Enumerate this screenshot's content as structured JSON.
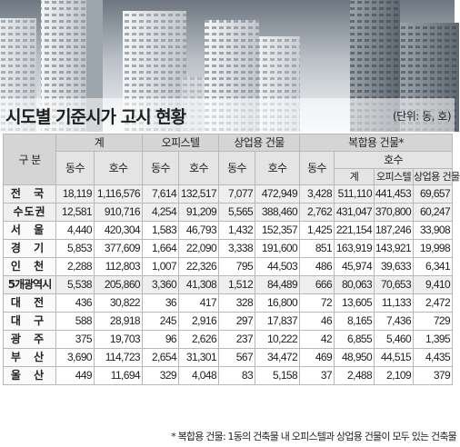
{
  "title": "시도별 기준시가 고시 현황",
  "unit": "(단위: 동, 호)",
  "headers": {
    "category": "구 분",
    "total": "계",
    "officetel": "오피스텔",
    "commercial": "상업용 건물",
    "mixed": "복합용 건물*",
    "dong": "동수",
    "ho": "호수",
    "mixed_total": "계",
    "mixed_officetel": "오피스텔",
    "mixed_commercial": "상업용 건물"
  },
  "rows": [
    {
      "name": "전 국",
      "v": [
        "18,119",
        "1,116,576",
        "7,614",
        "132,517",
        "7,077",
        "472,949",
        "3,428",
        "511,110",
        "441,453",
        "69,657"
      ]
    },
    {
      "name": "수도권",
      "v": [
        "12,581",
        "910,716",
        "4,254",
        "91,209",
        "5,565",
        "388,460",
        "2,762",
        "431,047",
        "370,800",
        "60,247"
      ]
    },
    {
      "name": "서 울",
      "v": [
        "4,440",
        "420,304",
        "1,583",
        "46,793",
        "1,432",
        "152,357",
        "1,425",
        "221,154",
        "187,246",
        "33,908"
      ]
    },
    {
      "name": "경 기",
      "v": [
        "5,853",
        "377,609",
        "1,664",
        "22,090",
        "3,338",
        "191,600",
        "851",
        "163,919",
        "143,921",
        "19,998"
      ]
    },
    {
      "name": "인 천",
      "v": [
        "2,288",
        "112,803",
        "1,007",
        "22,326",
        "795",
        "44,503",
        "486",
        "45,974",
        "39,633",
        "6,341"
      ]
    },
    {
      "name": "5개광역시",
      "v": [
        "5,538",
        "205,860",
        "3,360",
        "41,308",
        "1,512",
        "84,489",
        "666",
        "80,063",
        "70,653",
        "9,410"
      ]
    },
    {
      "name": "대 전",
      "v": [
        "436",
        "30,822",
        "36",
        "417",
        "328",
        "16,800",
        "72",
        "13,605",
        "11,133",
        "2,472"
      ]
    },
    {
      "name": "대 구",
      "v": [
        "588",
        "28,918",
        "245",
        "2,916",
        "297",
        "17,837",
        "46",
        "8,165",
        "7,436",
        "729"
      ]
    },
    {
      "name": "광 주",
      "v": [
        "375",
        "19,703",
        "96",
        "2,626",
        "237",
        "10,222",
        "42",
        "6,855",
        "5,460",
        "1,395"
      ]
    },
    {
      "name": "부 산",
      "v": [
        "3,690",
        "114,723",
        "2,654",
        "31,301",
        "567",
        "34,472",
        "469",
        "48,950",
        "44,515",
        "4,435"
      ]
    },
    {
      "name": "울 산",
      "v": [
        "449",
        "11,694",
        "329",
        "4,048",
        "83",
        "5,158",
        "37",
        "2,488",
        "2,109",
        "379"
      ]
    }
  ],
  "footnote": "* 복합용 건물: 1동의 건축물 내 오피스텔과 상업용 건물이 모두 있는 건축물"
}
